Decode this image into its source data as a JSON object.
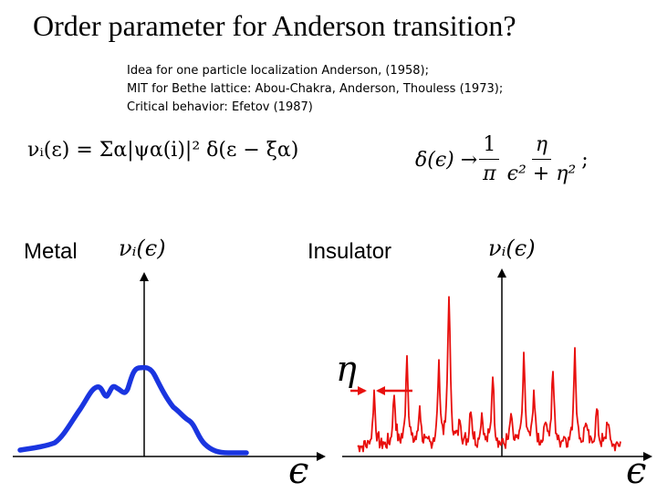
{
  "title": "Order parameter for Anderson transition?",
  "references": [
    "Idea for one particle localization Anderson, (1958);",
    "MIT for Bethe lattice: Abou-Chakra, Anderson, Thouless (1973);",
    "Critical behavior: Efetov (1987)"
  ],
  "equation_ldos": "νᵢ(ε) = Σα|ψα(i)|² δ(ε − ξα)",
  "equation_delta": {
    "lhs": "δ(ϵ) →",
    "frac1_num": "1",
    "frac1_den": "π",
    "frac2_num": "η",
    "frac2_den": "ϵ² + η²",
    "tail": ";"
  },
  "metal_panel": {
    "label": "Metal",
    "y_axis_label": "νᵢ(ϵ)",
    "x_axis_label": "ϵ",
    "curve_color": "#1a35e0"
  },
  "insulator_panel": {
    "label": "Insulator",
    "y_axis_label": "νᵢ(ϵ)",
    "x_axis_label": "ϵ",
    "width_label": "η",
    "curve_color": "#e8100e"
  }
}
